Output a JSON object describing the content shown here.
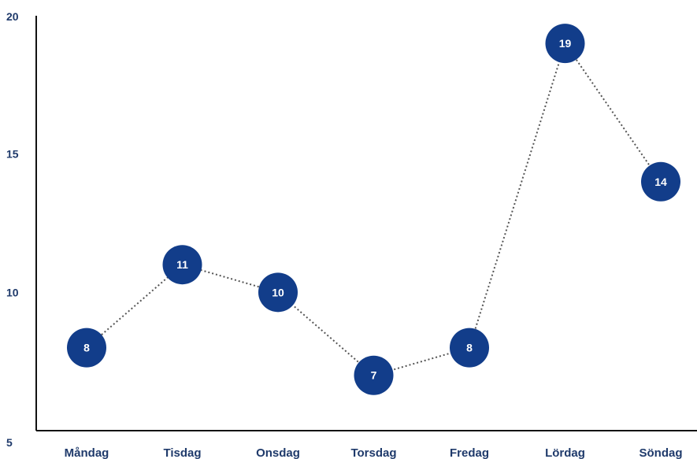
{
  "chart_data": {
    "type": "line",
    "title": "",
    "xlabel": "",
    "ylabel": "",
    "categories": [
      "Måndag",
      "Tisdag",
      "Onsdag",
      "Torsdag",
      "Fredag",
      "Lördag",
      "Söndag"
    ],
    "series": [
      {
        "values": [
          8,
          11,
          10,
          7,
          8,
          19,
          14
        ],
        "data_labels": [
          "8",
          "11",
          "10",
          "7",
          "8",
          "19",
          "14"
        ]
      }
    ],
    "ylim": [
      5,
      20
    ],
    "yticks": [
      5,
      10,
      15,
      20
    ],
    "ytick_labels": [
      "5",
      "10",
      "15",
      "20"
    ],
    "grid": false,
    "legend": "none",
    "line_style": "dotted",
    "colors": {
      "marker": "#123d8a",
      "marker_text": "#ffffff",
      "line": "#555555",
      "axis": "#111111",
      "labels": "#1f3a6b"
    }
  }
}
